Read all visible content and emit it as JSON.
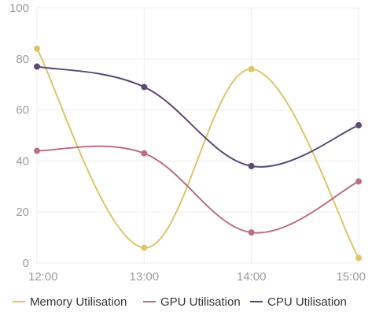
{
  "chart_data": {
    "type": "line",
    "title": "",
    "xlabel": "",
    "ylabel": "",
    "categories": [
      "12:00",
      "13:00",
      "14:00",
      "15:00"
    ],
    "ylim": [
      0,
      100
    ],
    "yticks": [
      "0",
      "20",
      "40",
      "60",
      "80",
      "100"
    ],
    "grid": true,
    "legend": "bottom",
    "series": [
      {
        "name": "Memory Utilisation",
        "values": [
          84,
          6,
          76,
          2
        ],
        "color": "#dcc56a"
      },
      {
        "name": "GPU Utilisation",
        "values": [
          44,
          43,
          12,
          32
        ],
        "color": "#b86f8a"
      },
      {
        "name": "CPU Utilisation",
        "values": [
          77,
          69,
          38,
          54
        ],
        "color": "#5b4a72"
      }
    ]
  }
}
